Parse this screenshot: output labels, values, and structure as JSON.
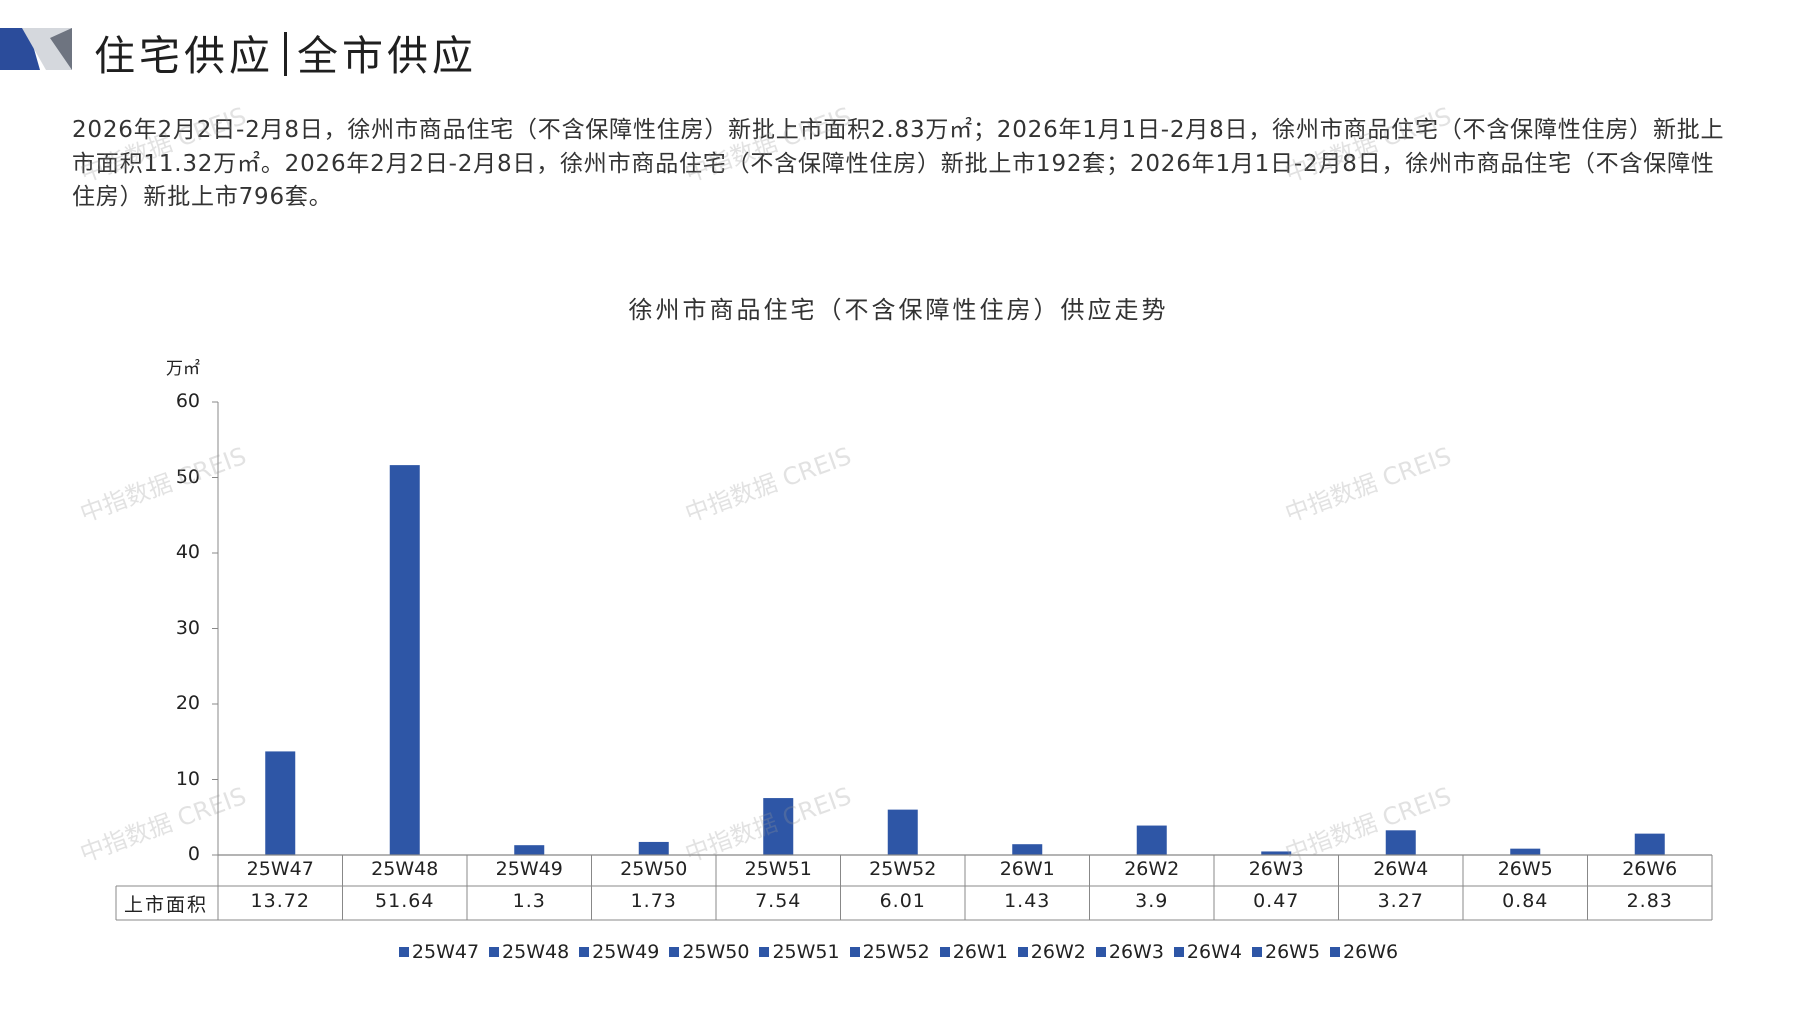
{
  "header": {
    "title_left": "住宅供应",
    "title_right": "全市供应"
  },
  "summary": {
    "text": "2026年2月2日-2月8日，徐州市商品住宅（不含保障性住房）新批上市面积2.83万㎡；2026年1月1日-2月8日，徐州市商品住宅（不含保障性住房）新批上市面积11.32万㎡。2026年2月2日-2月8日，徐州市商品住宅（不含保障性住房）新批上市192套；2026年1月1日-2月8日，徐州市商品住宅（不含保障性住房）新批上市796套。"
  },
  "watermark": "中指数据 CREIS",
  "colors": {
    "bar": "#2E56A6",
    "logo_blue": "#2B4C9B",
    "logo_grey": "#9AA0AA"
  },
  "chart_data": {
    "type": "bar",
    "title": "徐州市商品住宅（不含保障性住房）供应走势",
    "ylabel": "万㎡",
    "xlabel": "",
    "ylim": [
      0,
      60
    ],
    "yticks": [
      "0",
      "10",
      "20",
      "30",
      "40",
      "50",
      "60"
    ],
    "categories": [
      "25W47",
      "25W48",
      "25W49",
      "25W50",
      "25W51",
      "25W52",
      "26W1",
      "26W2",
      "26W3",
      "26W4",
      "26W5",
      "26W6"
    ],
    "series": [
      {
        "name": "上市面积",
        "values": [
          13.72,
          51.64,
          1.3,
          1.73,
          7.54,
          6.01,
          1.43,
          3.9,
          0.47,
          3.27,
          0.84,
          2.83
        ],
        "display": [
          "13.72",
          "51.64",
          "1.3",
          "1.73",
          "7.54",
          "6.01",
          "1.43",
          "3.9",
          "0.47",
          "3.27",
          "0.84",
          "2.83"
        ]
      }
    ],
    "legend": [
      "25W47",
      "25W48",
      "25W49",
      "25W50",
      "25W51",
      "25W52",
      "26W1",
      "26W2",
      "26W3",
      "26W4",
      "26W5",
      "26W6"
    ],
    "legend_position": "bottom",
    "grid": false
  }
}
